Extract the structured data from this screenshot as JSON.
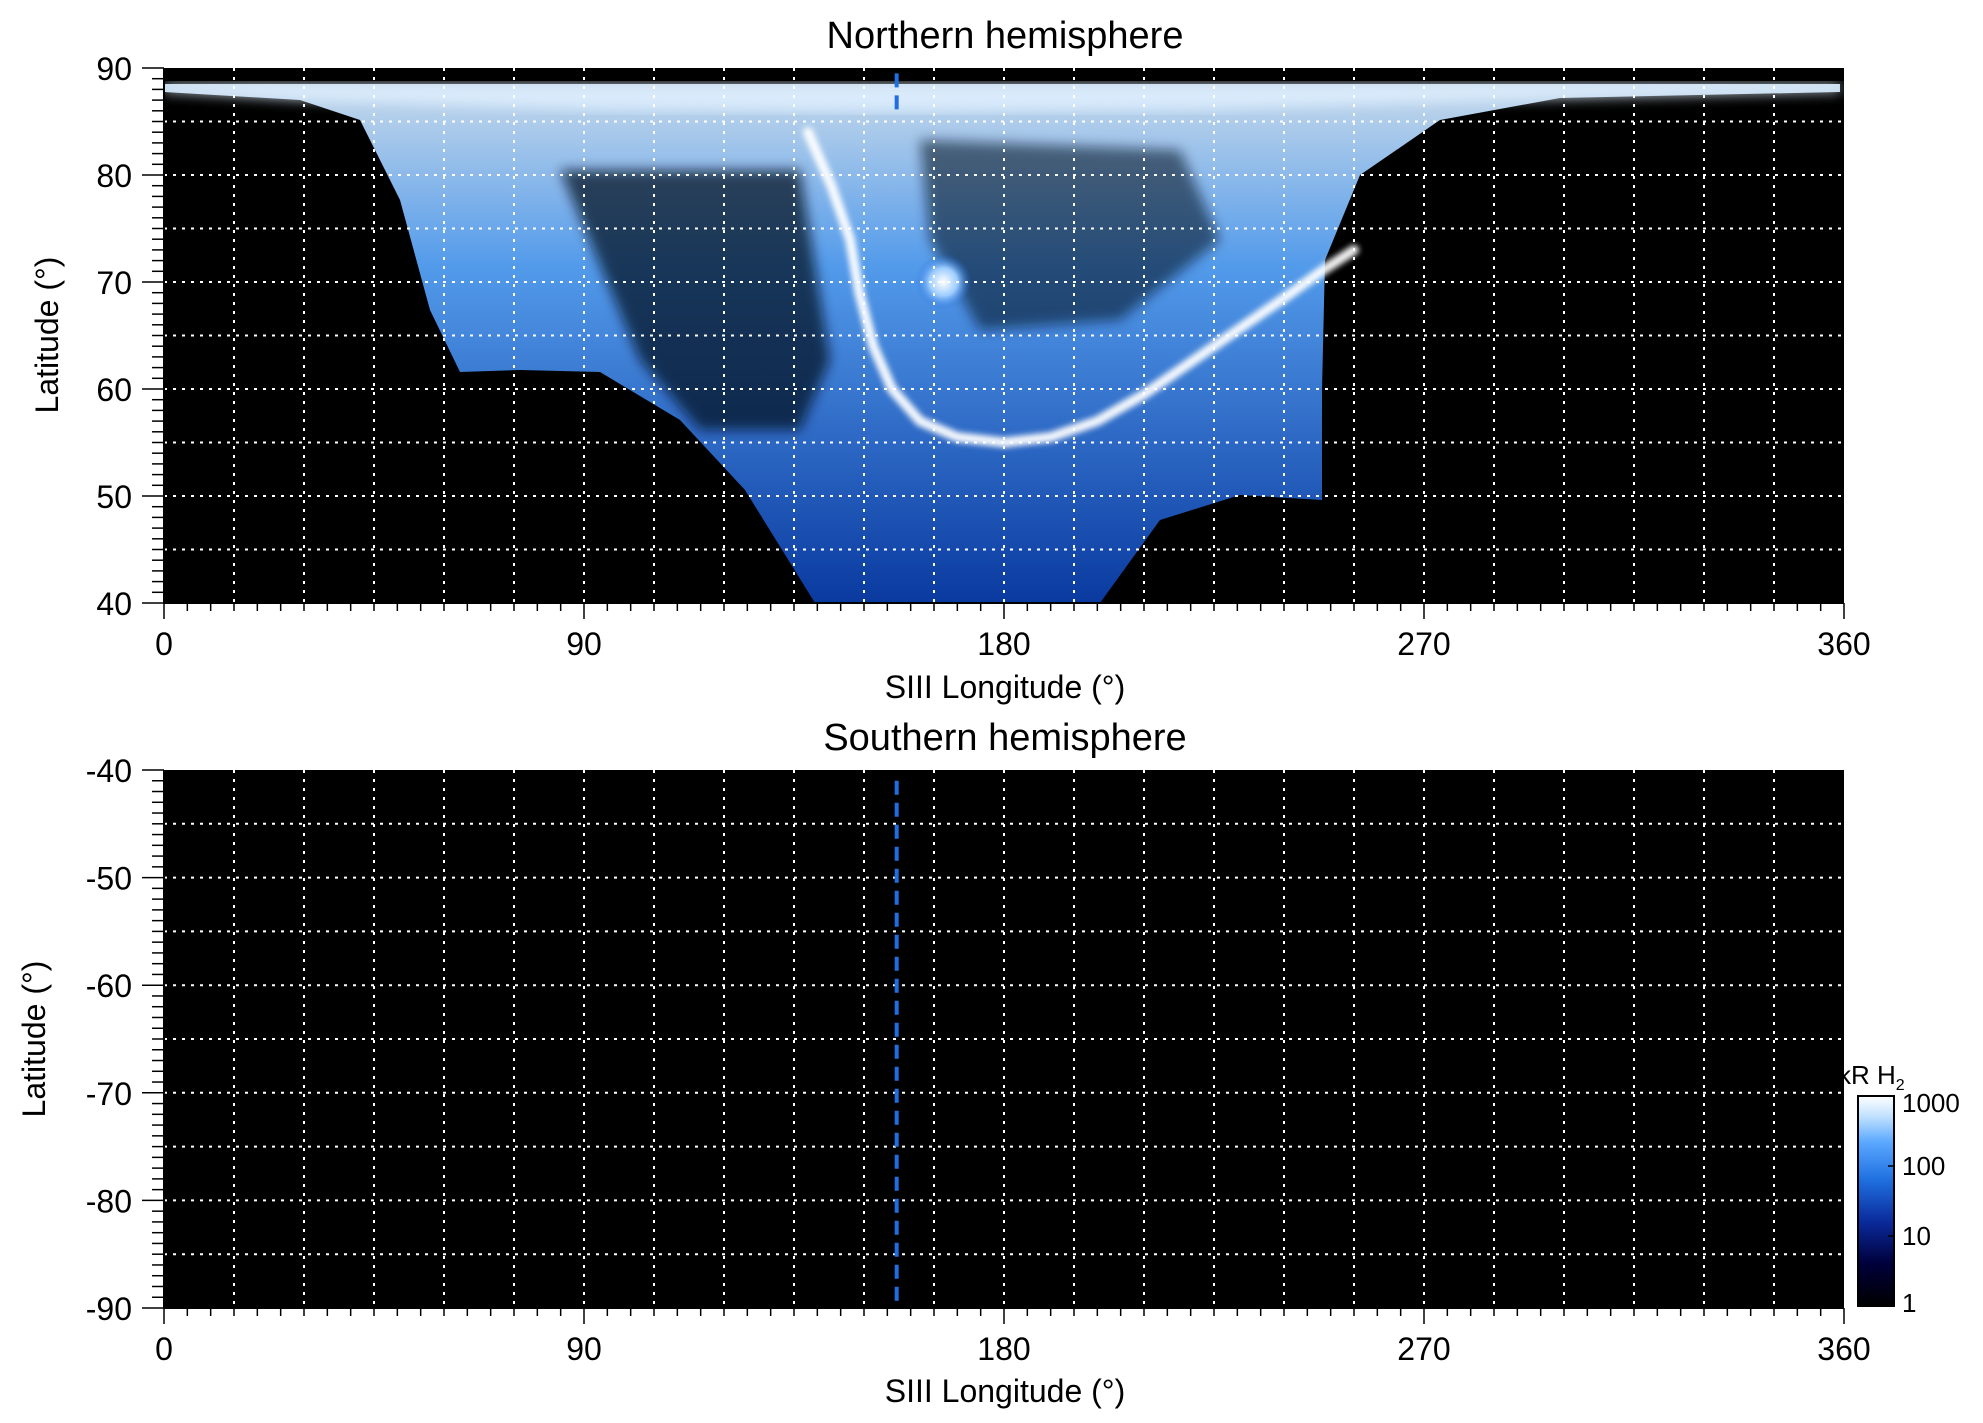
{
  "chart_data": [
    {
      "type": "heatmap",
      "title": "Northern hemisphere",
      "xlabel": "SIII Longitude (°)",
      "ylabel": "Latitude (°)",
      "xlim": [
        0,
        360
      ],
      "ylim": [
        40,
        90
      ],
      "xticks": [
        "0",
        "90",
        "180",
        "270",
        "360"
      ],
      "yticks": [
        "90",
        "80",
        "70",
        "60",
        "50",
        "40"
      ],
      "grid": true,
      "marker_longitude": 157,
      "features": {
        "main_oval": [
          [
            138,
            84
          ],
          [
            143,
            79
          ],
          [
            147,
            74
          ],
          [
            149,
            69
          ],
          [
            152,
            64
          ],
          [
            156,
            60
          ],
          [
            162,
            57
          ],
          [
            170,
            55.5
          ],
          [
            180,
            55
          ],
          [
            190,
            55.5
          ],
          [
            200,
            57
          ],
          [
            210,
            59.5
          ],
          [
            220,
            62.5
          ],
          [
            230,
            65.5
          ],
          [
            240,
            68.5
          ],
          [
            248,
            71
          ],
          [
            255,
            73
          ]
        ],
        "polar_spot": [
          167,
          70
        ]
      }
    },
    {
      "type": "heatmap",
      "title": "Southern hemisphere",
      "xlabel": "SIII Longitude (°)",
      "ylabel": "Latitude (°)",
      "xlim": [
        0,
        360
      ],
      "ylim": [
        -90,
        -40
      ],
      "xticks": [
        "0",
        "90",
        "180",
        "270",
        "360"
      ],
      "yticks": [
        "-40",
        "-50",
        "-60",
        "-70",
        "-80",
        "-90"
      ],
      "grid": true,
      "marker_longitude": 157
    }
  ],
  "colorbar": {
    "label_main": "kR H",
    "label_sub": "2",
    "scale": "log",
    "range": [
      1,
      1000
    ],
    "ticks": [
      "1000",
      "100",
      "10",
      "1"
    ],
    "colors": [
      "#000000",
      "#00003a",
      "#0a2a9a",
      "#1f6fe0",
      "#5aa8ff",
      "#bfe0ff",
      "#ffffff"
    ]
  }
}
